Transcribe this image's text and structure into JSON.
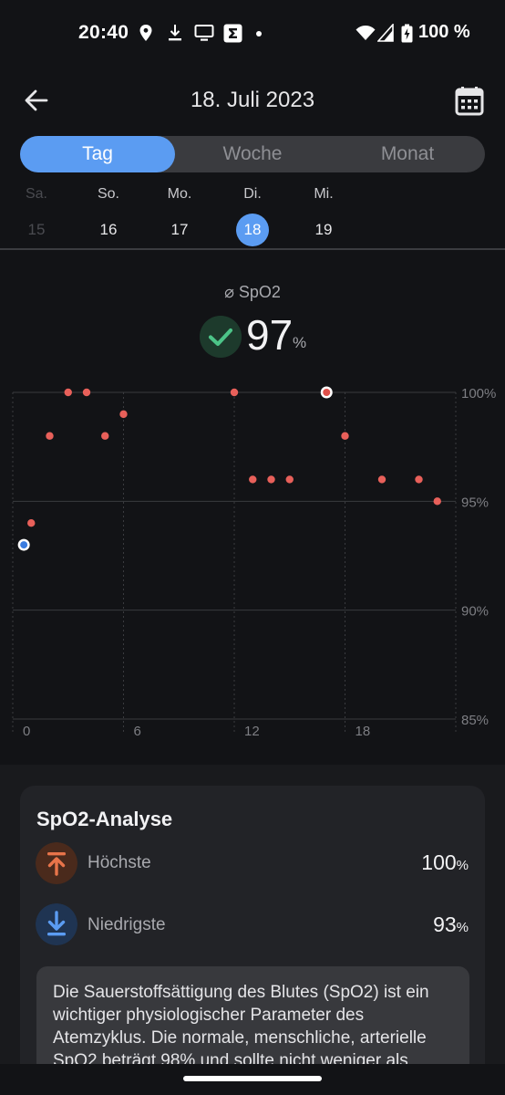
{
  "status_bar": {
    "time": "20:40",
    "battery_text": "100 %"
  },
  "app_bar": {
    "title": "18. Juli 2023",
    "back_icon": "arrow-left-icon",
    "calendar_icon": "calendar-icon"
  },
  "tabs": [
    {
      "label": "Tag",
      "active": true
    },
    {
      "label": "Woche",
      "active": false
    },
    {
      "label": "Monat",
      "active": false
    }
  ],
  "days": [
    {
      "name": "Sa.",
      "date": "15",
      "state": "dim"
    },
    {
      "name": "So.",
      "date": "16",
      "state": "normal"
    },
    {
      "name": "Mo.",
      "date": "17",
      "state": "normal"
    },
    {
      "name": "Di.",
      "date": "18",
      "state": "selected"
    },
    {
      "name": "Mi.",
      "date": "19",
      "state": "normal"
    }
  ],
  "summary": {
    "label": "⌀ SpO2",
    "value": "97",
    "unit": "%",
    "status_icon": "check-icon"
  },
  "chart_data": {
    "type": "scatter",
    "x_ticks": [
      "0",
      "6",
      "12",
      "18"
    ],
    "y_ticks": [
      "100%",
      "95%",
      "90%",
      "85%"
    ],
    "ylim": [
      85,
      100
    ],
    "xlim": [
      0,
      24
    ],
    "color": "#e8605a",
    "points": [
      {
        "x": 1,
        "y": 94
      },
      {
        "x": 2,
        "y": 98
      },
      {
        "x": 3,
        "y": 100
      },
      {
        "x": 4,
        "y": 100
      },
      {
        "x": 5,
        "y": 98
      },
      {
        "x": 6,
        "y": 99
      },
      {
        "x": 12,
        "y": 100
      },
      {
        "x": 13,
        "y": 96
      },
      {
        "x": 14,
        "y": 96
      },
      {
        "x": 15,
        "y": 96
      },
      {
        "x": 18,
        "y": 98
      },
      {
        "x": 20,
        "y": 96
      },
      {
        "x": 22,
        "y": 96
      },
      {
        "x": 23,
        "y": 95
      }
    ],
    "min_point": {
      "x": 0.6,
      "y": 93
    },
    "max_point": {
      "x": 17,
      "y": 100
    }
  },
  "analysis": {
    "title": "SpO2-Analyse",
    "highest": {
      "label": "Höchste",
      "value": "100",
      "unit": "%",
      "icon": "arrow-up-to-line-icon"
    },
    "lowest": {
      "label": "Niedrigste",
      "value": "93",
      "unit": "%",
      "icon": "arrow-down-to-line-icon"
    },
    "info_text": "Die Sauerstoffsättigung des Blutes (SpO2) ist ein wichtiger physiologischer Parameter des Atemzyklus. Die normale, menschliche, arterielle SpO2 beträgt 98% und sollte nicht weniger als"
  },
  "colors": {
    "accent": "#5b9cf2",
    "point": "#e8605a",
    "highest": "#e8744a",
    "lowest": "#5b9cf2",
    "ok": "#4cc488"
  }
}
